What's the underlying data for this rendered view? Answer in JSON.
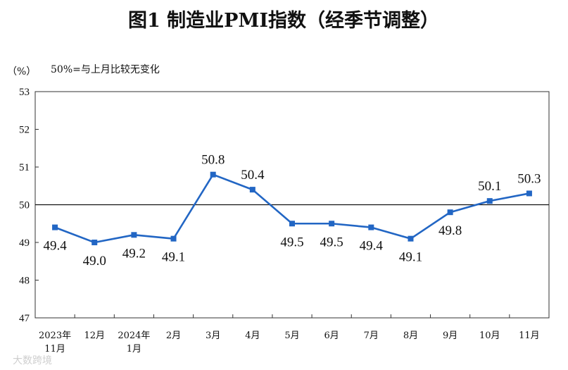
{
  "chart_data": {
    "type": "line",
    "title": "图1  制造业PMI指数（经季节调整）",
    "ylabel": "（%）",
    "annotation": "50%=与上月比较无变化",
    "ylim": [
      47,
      53
    ],
    "yticks": [
      "47",
      "48",
      "49",
      "50",
      "51",
      "52",
      "53"
    ],
    "reference_line": 50,
    "categories": [
      [
        "2023年",
        "11月"
      ],
      [
        "12月"
      ],
      [
        "2024年",
        "1月"
      ],
      [
        "2月"
      ],
      [
        "3月"
      ],
      [
        "4月"
      ],
      [
        "5月"
      ],
      [
        "6月"
      ],
      [
        "7月"
      ],
      [
        "8月"
      ],
      [
        "9月"
      ],
      [
        "10月"
      ],
      [
        "11月"
      ]
    ],
    "series": [
      {
        "values": [
          49.4,
          49.0,
          49.2,
          49.1,
          50.8,
          50.4,
          49.5,
          49.5,
          49.4,
          49.1,
          49.8,
          50.1,
          50.3
        ],
        "labels": [
          "49.4",
          "49.0",
          "49.2",
          "49.1",
          "50.8",
          "50.4",
          "49.5",
          "49.5",
          "49.4",
          "49.1",
          "49.8",
          "50.1",
          "50.3"
        ],
        "color": "#2266c4"
      }
    ],
    "watermark": "大数跨境",
    "grid": false
  }
}
